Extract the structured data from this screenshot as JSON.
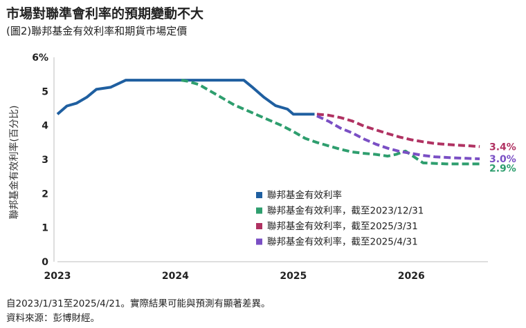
{
  "header": {
    "title": "市場對聯準會利率的預期變動不大",
    "subtitle": "(圖2)聯邦基金有效利率和期貨市場定價"
  },
  "footer": {
    "note": "自2023/1/31至2025/4/21。實際結果可能與預測有顯著差異。",
    "source": "資料來源：彭博財經。"
  },
  "chart_data": {
    "type": "line",
    "ylabel": "聯邦基金有效利率(百分比)",
    "xlim": [
      2023.0,
      2026.65
    ],
    "ylim": [
      0,
      6
    ],
    "yticks": [
      {
        "value": 0,
        "label": "0"
      },
      {
        "value": 1,
        "label": "1"
      },
      {
        "value": 2,
        "label": "2"
      },
      {
        "value": 3,
        "label": "3"
      },
      {
        "value": 4,
        "label": "4"
      },
      {
        "value": 5,
        "label": "5"
      },
      {
        "value": 6,
        "label": "6%"
      }
    ],
    "xticks": [
      {
        "value": 2023,
        "label": "2023"
      },
      {
        "value": 2024,
        "label": "2024"
      },
      {
        "value": 2025,
        "label": "2025"
      },
      {
        "value": 2026,
        "label": "2026"
      }
    ],
    "grid": false,
    "legend_position": "lower-right",
    "series": [
      {
        "name": "聯邦基金有效利率",
        "color": "#1f5fa0",
        "style": "solid",
        "x": [
          2023.0,
          2023.08,
          2023.16,
          2023.25,
          2023.33,
          2023.45,
          2023.58,
          2023.62,
          2023.75,
          2023.9,
          2024.0,
          2024.2,
          2024.4,
          2024.58,
          2024.65,
          2024.75,
          2024.85,
          2024.95,
          2025.0,
          2025.1,
          2025.18
        ],
        "y": [
          4.33,
          4.57,
          4.65,
          4.83,
          5.06,
          5.12,
          5.33,
          5.33,
          5.33,
          5.33,
          5.33,
          5.33,
          5.33,
          5.33,
          5.13,
          4.83,
          4.58,
          4.48,
          4.33,
          4.33,
          4.33
        ]
      },
      {
        "name": "聯邦基金有效利率，截至2023/12/31",
        "color": "#2e9e6e",
        "style": "dashed",
        "x": [
          2024.05,
          2024.1,
          2024.2,
          2024.3,
          2024.4,
          2024.5,
          2024.6,
          2024.7,
          2024.8,
          2024.9,
          2025.0,
          2025.1,
          2025.2,
          2025.3,
          2025.4,
          2025.5,
          2025.6,
          2025.7,
          2025.8,
          2025.87,
          2025.95,
          2026.1,
          2026.3,
          2026.5,
          2026.58
        ],
        "y": [
          5.33,
          5.3,
          5.2,
          5.0,
          4.8,
          4.6,
          4.45,
          4.3,
          4.15,
          4.0,
          3.82,
          3.62,
          3.5,
          3.4,
          3.3,
          3.22,
          3.18,
          3.15,
          3.1,
          3.15,
          3.25,
          2.9,
          2.87,
          2.87,
          2.87
        ]
      },
      {
        "name": "聯邦基金有效利率，截至2025/3/31",
        "color": "#b03262",
        "style": "dashed",
        "x": [
          2025.2,
          2025.3,
          2025.4,
          2025.5,
          2025.6,
          2025.7,
          2025.8,
          2025.9,
          2026.0,
          2026.1,
          2026.2,
          2026.35,
          2026.5,
          2026.58
        ],
        "y": [
          4.33,
          4.3,
          4.23,
          4.13,
          3.98,
          3.87,
          3.76,
          3.66,
          3.58,
          3.52,
          3.47,
          3.43,
          3.4,
          3.38
        ]
      },
      {
        "name": "聯邦基金有效利率，截至2025/4/31",
        "color": "#7a4fc4",
        "style": "dashed",
        "x": [
          2025.2,
          2025.3,
          2025.4,
          2025.5,
          2025.6,
          2025.7,
          2025.8,
          2025.9,
          2026.0,
          2026.1,
          2026.2,
          2026.35,
          2026.5,
          2026.58
        ],
        "y": [
          4.28,
          4.12,
          3.92,
          3.78,
          3.6,
          3.45,
          3.33,
          3.24,
          3.18,
          3.12,
          3.08,
          3.05,
          3.03,
          3.02
        ]
      }
    ],
    "end_labels": [
      {
        "text": "3.4%",
        "color": "#b03262",
        "y": 3.38
      },
      {
        "text": "3.0%",
        "color": "#7a4fc4",
        "y": 3.02
      },
      {
        "text": "2.9%",
        "color": "#2e9e6e",
        "y": 2.75
      }
    ]
  }
}
